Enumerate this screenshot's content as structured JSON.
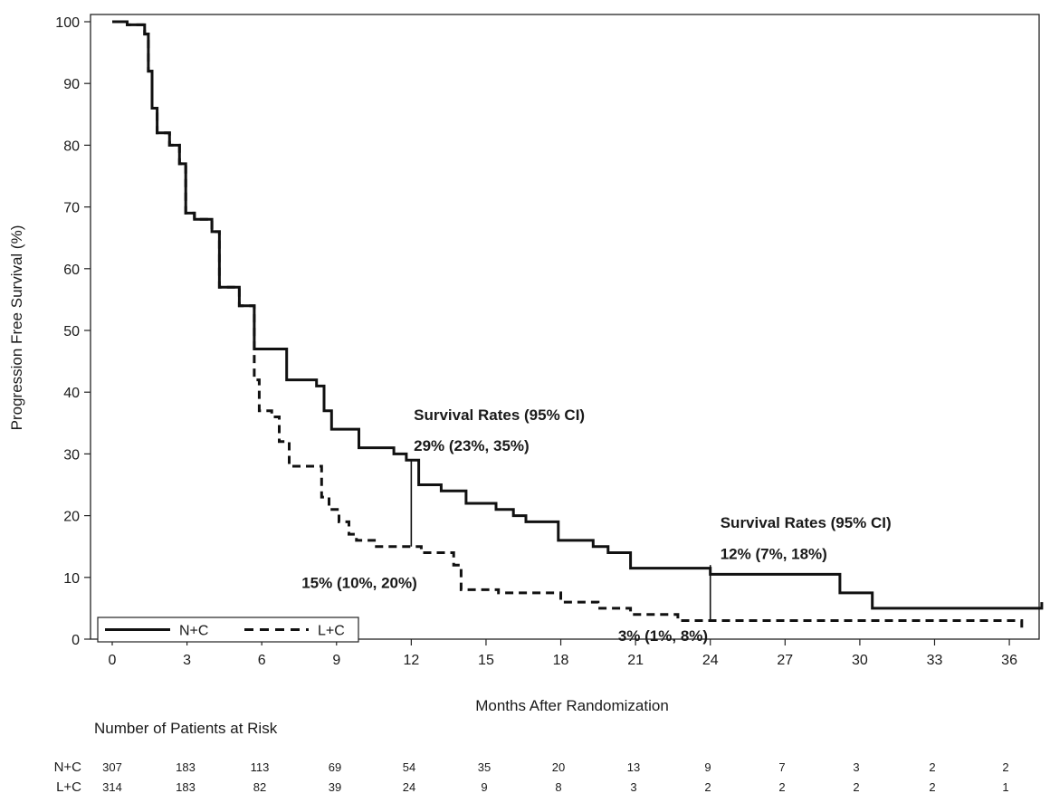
{
  "chart_data": {
    "type": "line",
    "title": "",
    "xlabel": "Months After Randomization",
    "ylabel": "Progression Free Survival (%)",
    "xlim": [
      0,
      37.5
    ],
    "ylim": [
      0,
      100
    ],
    "xticks": [
      0,
      3,
      6,
      9,
      12,
      15,
      18,
      21,
      24,
      27,
      30,
      33,
      36
    ],
    "yticks": [
      0,
      10,
      20,
      30,
      40,
      50,
      60,
      70,
      80,
      90,
      100
    ],
    "grid": false,
    "legend": {
      "position": "bottom-left",
      "entries": [
        "N+C",
        "L+C"
      ]
    },
    "series": [
      {
        "name": "N+C",
        "style": "solid",
        "points": [
          [
            0,
            100
          ],
          [
            0.6,
            100
          ],
          [
            0.6,
            99.5
          ],
          [
            1.3,
            99.5
          ],
          [
            1.3,
            98
          ],
          [
            1.45,
            98
          ],
          [
            1.45,
            92
          ],
          [
            1.6,
            92
          ],
          [
            1.6,
            86
          ],
          [
            1.8,
            86
          ],
          [
            1.8,
            82
          ],
          [
            2.3,
            82
          ],
          [
            2.3,
            80
          ],
          [
            2.7,
            80
          ],
          [
            2.7,
            77
          ],
          [
            2.95,
            77
          ],
          [
            2.95,
            69
          ],
          [
            3.3,
            69
          ],
          [
            3.3,
            68
          ],
          [
            4.0,
            68
          ],
          [
            4.0,
            66
          ],
          [
            4.3,
            66
          ],
          [
            4.3,
            57
          ],
          [
            5.1,
            57
          ],
          [
            5.1,
            54
          ],
          [
            5.7,
            54
          ],
          [
            5.7,
            47
          ],
          [
            7.0,
            47
          ],
          [
            7.0,
            42
          ],
          [
            8.2,
            42
          ],
          [
            8.2,
            41
          ],
          [
            8.5,
            41
          ],
          [
            8.5,
            37
          ],
          [
            8.8,
            37
          ],
          [
            8.8,
            34
          ],
          [
            9.9,
            34
          ],
          [
            9.9,
            31
          ],
          [
            11.3,
            31
          ],
          [
            11.3,
            30
          ],
          [
            11.8,
            30
          ],
          [
            11.8,
            29
          ],
          [
            12.3,
            29
          ],
          [
            12.3,
            25
          ],
          [
            13.2,
            25
          ],
          [
            13.2,
            24
          ],
          [
            14.2,
            24
          ],
          [
            14.2,
            22
          ],
          [
            15.4,
            22
          ],
          [
            15.4,
            21
          ],
          [
            16.1,
            21
          ],
          [
            16.1,
            20
          ],
          [
            16.6,
            20
          ],
          [
            16.6,
            19
          ],
          [
            17.9,
            19
          ],
          [
            17.9,
            16
          ],
          [
            19.3,
            16
          ],
          [
            19.3,
            15
          ],
          [
            19.9,
            15
          ],
          [
            19.9,
            14
          ],
          [
            20.8,
            14
          ],
          [
            20.8,
            11.5
          ],
          [
            24.0,
            11.5
          ],
          [
            24.0,
            10.5
          ],
          [
            29.2,
            10.5
          ],
          [
            29.2,
            7.5
          ],
          [
            30.5,
            7.5
          ],
          [
            30.5,
            5
          ],
          [
            37.3,
            5
          ],
          [
            37.3,
            6
          ]
        ]
      },
      {
        "name": "L+C",
        "style": "dashed",
        "points": [
          [
            0,
            100
          ],
          [
            0.6,
            100
          ],
          [
            0.6,
            99.5
          ],
          [
            1.3,
            99.5
          ],
          [
            1.3,
            98
          ],
          [
            1.45,
            98
          ],
          [
            1.45,
            92
          ],
          [
            1.6,
            92
          ],
          [
            1.6,
            86
          ],
          [
            1.8,
            86
          ],
          [
            1.8,
            82
          ],
          [
            2.3,
            82
          ],
          [
            2.3,
            80
          ],
          [
            2.7,
            80
          ],
          [
            2.7,
            77
          ],
          [
            2.95,
            77
          ],
          [
            2.95,
            69
          ],
          [
            3.3,
            69
          ],
          [
            3.3,
            68
          ],
          [
            4.0,
            68
          ],
          [
            4.0,
            66
          ],
          [
            4.3,
            66
          ],
          [
            4.3,
            57
          ],
          [
            5.1,
            57
          ],
          [
            5.1,
            54
          ],
          [
            5.7,
            54
          ],
          [
            5.7,
            42
          ],
          [
            5.9,
            42
          ],
          [
            5.9,
            37
          ],
          [
            6.4,
            37
          ],
          [
            6.4,
            36
          ],
          [
            6.7,
            36
          ],
          [
            6.7,
            32
          ],
          [
            7.1,
            32
          ],
          [
            7.1,
            28
          ],
          [
            8.4,
            28
          ],
          [
            8.4,
            23
          ],
          [
            8.7,
            23
          ],
          [
            8.7,
            21
          ],
          [
            9.1,
            21
          ],
          [
            9.1,
            19
          ],
          [
            9.5,
            19
          ],
          [
            9.5,
            17
          ],
          [
            9.8,
            17
          ],
          [
            9.8,
            16
          ],
          [
            10.6,
            16
          ],
          [
            10.6,
            15
          ],
          [
            12.4,
            15
          ],
          [
            12.4,
            14
          ],
          [
            13.7,
            14
          ],
          [
            13.7,
            12
          ],
          [
            14.0,
            12
          ],
          [
            14.0,
            8
          ],
          [
            15.5,
            8
          ],
          [
            15.5,
            7.5
          ],
          [
            18.0,
            7.5
          ],
          [
            18.0,
            6
          ],
          [
            19.5,
            6
          ],
          [
            19.5,
            5
          ],
          [
            20.8,
            5
          ],
          [
            20.8,
            4
          ],
          [
            22.7,
            4
          ],
          [
            22.7,
            3
          ],
          [
            36.5,
            3
          ],
          [
            36.5,
            1
          ]
        ]
      }
    ],
    "annotations": [
      {
        "text": "Survival Rates (95% CI)",
        "x": 12.1,
        "y": 35.5
      },
      {
        "text": "29% (23%, 35%)",
        "x": 12.1,
        "y": 30.5
      },
      {
        "text": "15% (10%, 20%)",
        "x": 7.6,
        "y": 8.3
      },
      {
        "text": "Survival Rates (95% CI)",
        "x": 24.4,
        "y": 18
      },
      {
        "text": "12% (7%, 18%)",
        "x": 24.4,
        "y": 13
      },
      {
        "text": "3% (1%, 8%)",
        "x": 20.3,
        "y": -0.3
      }
    ],
    "marker_lines": [
      {
        "x": 12.0,
        "y1": 15,
        "y2": 29
      },
      {
        "x": 24.0,
        "y1": 3,
        "y2": 12
      }
    ],
    "risk_table": {
      "title": "Number of Patients at Risk",
      "rows": [
        {
          "label": "N+C",
          "values": [
            307,
            183,
            113,
            69,
            54,
            35,
            20,
            13,
            9,
            7,
            3,
            2,
            2
          ]
        },
        {
          "label": "L+C",
          "values": [
            314,
            183,
            82,
            39,
            24,
            9,
            8,
            3,
            2,
            2,
            2,
            2,
            1
          ]
        }
      ]
    }
  }
}
